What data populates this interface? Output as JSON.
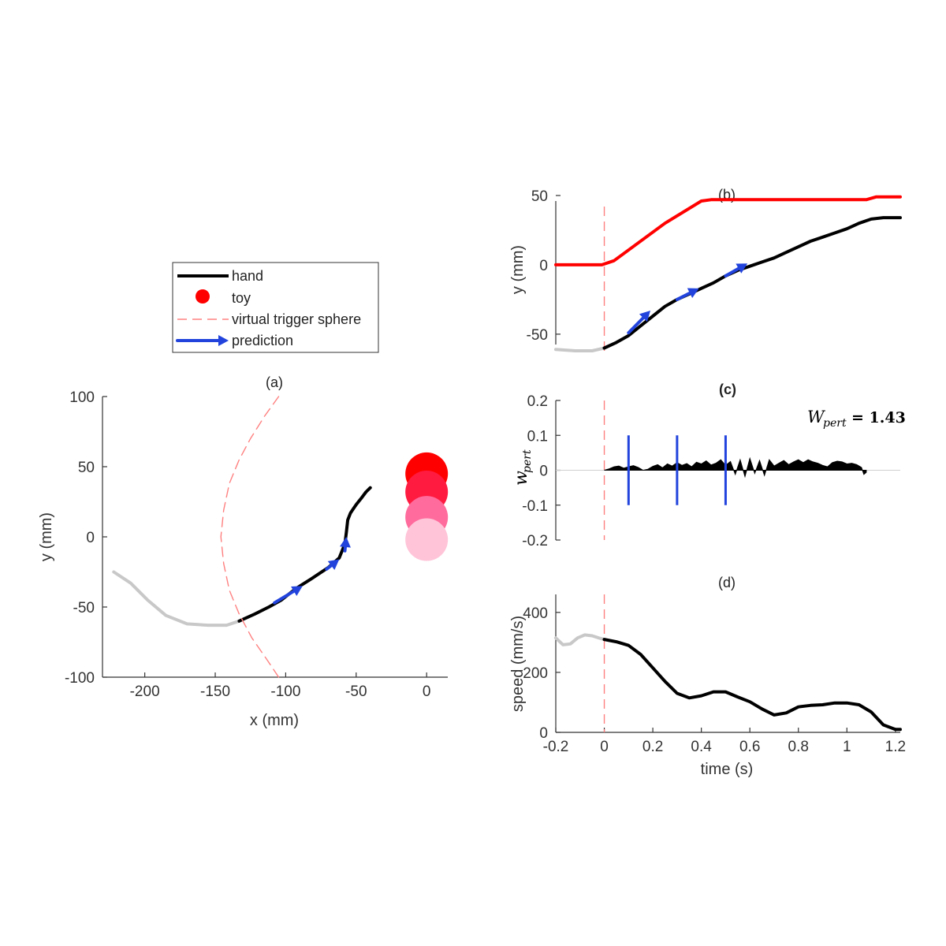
{
  "chart_data": [
    {
      "id": "a",
      "type": "line",
      "title": "(a)",
      "xlabel": "x (mm)",
      "ylabel": "y (mm)",
      "xlim": [
        -230,
        15
      ],
      "ylim": [
        -100,
        100
      ],
      "xticks": [
        -200,
        -150,
        -100,
        -50,
        0
      ],
      "yticks": [
        -100,
        -50,
        0,
        50,
        100
      ],
      "grid": false,
      "legend_placement": "top",
      "legend": [
        {
          "label": "hand",
          "marker": "line",
          "color": "#000000"
        },
        {
          "label": "toy",
          "marker": "dot",
          "color": "#ff0000"
        },
        {
          "label": "virtual trigger sphere",
          "marker": "dashed",
          "color": "#ff8080"
        },
        {
          "label": "prediction",
          "marker": "arrow",
          "color": "#2244dd"
        }
      ],
      "series": [
        {
          "style": "pre-trigger",
          "color": "#c8c8c8",
          "x": [
            -222,
            -210,
            -198,
            -185,
            -170,
            -155,
            -142,
            -133
          ],
          "y": [
            -25,
            -33,
            -45,
            -56,
            -62,
            -63,
            -63,
            -60
          ]
        },
        {
          "name": "hand",
          "color": "#000000",
          "x": [
            -133,
            -122,
            -112,
            -103,
            -93,
            -82,
            -70,
            -62,
            -58,
            -57,
            -56,
            -54,
            -52,
            -50,
            -46,
            -43,
            -40
          ],
          "y": [
            -60,
            -55,
            -50,
            -45,
            -37,
            -30,
            -22,
            -15,
            -5,
            3,
            12,
            17,
            20,
            23,
            28,
            32,
            35
          ]
        },
        {
          "name": "virtual trigger sphere",
          "color": "#ff8080",
          "dashed": true,
          "x": [
            -105,
            -115,
            -125,
            -133,
            -140,
            -144,
            -146,
            -144,
            -140,
            -133,
            -124,
            -113,
            -105
          ],
          "y": [
            100,
            86,
            70,
            55,
            38,
            19,
            0,
            -19,
            -38,
            -55,
            -72,
            -88,
            -100
          ]
        }
      ],
      "arrows": [
        {
          "x0": -108,
          "y0": -47,
          "x1": -88,
          "y1": -35
        },
        {
          "x0": -71,
          "y0": -23,
          "x1": -62,
          "y1": -16
        },
        {
          "x0": -58,
          "y0": -10,
          "x1": -57,
          "y1": 0
        }
      ],
      "toy": [
        {
          "x": 0,
          "y": 45,
          "color": "#ff0000"
        },
        {
          "x": 0,
          "y": 32,
          "color": "#ff1a40"
        },
        {
          "x": 0,
          "y": 14,
          "color": "#ff6b9c"
        },
        {
          "x": 0,
          "y": -2,
          "color": "#ffc4d8"
        }
      ]
    },
    {
      "id": "b",
      "type": "line",
      "title": "(b)",
      "xlabel": "",
      "ylabel": "y (mm)",
      "xlim": [
        -0.2,
        1.22
      ],
      "ylim": [
        -62,
        50
      ],
      "yticks": [
        -50,
        0,
        50
      ],
      "grid": false,
      "trigger_time": 0,
      "series": [
        {
          "style": "toy",
          "color": "#ff0000",
          "x": [
            -0.2,
            -0.01,
            0.04,
            0.25,
            0.4,
            0.44,
            1.08,
            1.12,
            1.22
          ],
          "y": [
            0,
            0,
            3,
            30,
            46,
            47,
            47,
            49,
            49
          ]
        },
        {
          "style": "pre-trigger",
          "color": "#c8c8c8",
          "x": [
            -0.2,
            -0.12,
            -0.05,
            0
          ],
          "y": [
            -61,
            -62,
            -62,
            -60
          ]
        },
        {
          "name": "hand",
          "color": "#000000",
          "x": [
            0,
            0.05,
            0.1,
            0.15,
            0.2,
            0.25,
            0.3,
            0.35,
            0.4,
            0.45,
            0.5,
            0.55,
            0.6,
            0.65,
            0.7,
            0.75,
            0.8,
            0.85,
            0.9,
            0.95,
            1.0,
            1.05,
            1.1,
            1.15,
            1.22
          ],
          "y": [
            -60,
            -56,
            -51,
            -44,
            -37,
            -30,
            -25,
            -21,
            -17,
            -13,
            -8,
            -4,
            -1,
            2,
            5,
            9,
            13,
            17,
            20,
            23,
            26,
            30,
            33,
            34,
            34
          ]
        }
      ],
      "arrows": [
        {
          "x0": 0.1,
          "y0": -49,
          "x1": 0.19,
          "y1": -33
        },
        {
          "x0": 0.3,
          "y0": -25,
          "x1": 0.39,
          "y1": -17
        },
        {
          "x0": 0.5,
          "y0": -8,
          "x1": 0.59,
          "y1": 1
        }
      ]
    },
    {
      "id": "c",
      "type": "area",
      "title": "(c)",
      "xlabel": "",
      "ylabel": "w_pert",
      "ylabel_base": "w",
      "ylabel_sub": "pert",
      "annotation_lhs": "W",
      "annotation_sub": "pert",
      "annotation_rhs": "= 1.43",
      "xlim": [
        -0.2,
        1.22
      ],
      "ylim": [
        -0.2,
        0.2
      ],
      "yticks": [
        -0.2,
        -0.1,
        0,
        0.1,
        0.2
      ],
      "grid": false,
      "trigger_time": 0,
      "prediction_times": [
        0.1,
        0.3,
        0.5
      ],
      "prediction_bar_range": [
        -0.1,
        0.1
      ],
      "series": [
        {
          "name": "w_pert",
          "color": "#000000",
          "x": [
            0,
            0.02,
            0.04,
            0.06,
            0.08,
            0.1,
            0.12,
            0.14,
            0.16,
            0.18,
            0.2,
            0.22,
            0.24,
            0.26,
            0.28,
            0.3,
            0.32,
            0.34,
            0.36,
            0.38,
            0.4,
            0.42,
            0.44,
            0.46,
            0.48,
            0.5,
            0.52,
            0.54,
            0.56,
            0.58,
            0.6,
            0.62,
            0.64,
            0.66,
            0.68,
            0.7,
            0.72,
            0.74,
            0.76,
            0.78,
            0.8,
            0.82,
            0.84,
            0.86,
            0.88,
            0.9,
            0.92,
            0.94,
            0.96,
            0.98,
            1.0,
            1.02,
            1.04,
            1.06,
            1.07,
            1.08
          ],
          "y": [
            0,
            0.004,
            0.01,
            0.012,
            0.006,
            0.01,
            0.013,
            0.008,
            0,
            0.003,
            0.011,
            0.016,
            0.007,
            0.018,
            0.012,
            0.022,
            0.014,
            0.019,
            0.01,
            0.023,
            0.018,
            0.027,
            0.015,
            0.02,
            0.03,
            0.014,
            0.025,
            -0.012,
            0.03,
            -0.018,
            0.034,
            -0.009,
            0.028,
            -0.015,
            0.03,
            0.012,
            0.02,
            0.028,
            0.016,
            0.024,
            0.03,
            0.022,
            0.03,
            0.024,
            0.02,
            0.014,
            0.01,
            0.022,
            0.026,
            0.024,
            0.018,
            0.02,
            0.016,
            0.008,
            -0.012,
            -0.006
          ]
        }
      ]
    },
    {
      "id": "d",
      "type": "line",
      "title": "(d)",
      "xlabel": "time (s)",
      "ylabel": "speed (mm/s)",
      "xlim": [
        -0.2,
        1.22
      ],
      "ylim": [
        0,
        460
      ],
      "xticks": [
        -0.2,
        0,
        0.2,
        0.4,
        0.6,
        0.8,
        1,
        1.2
      ],
      "yticks": [
        0,
        200,
        400
      ],
      "grid": false,
      "trigger_time": 0,
      "series": [
        {
          "style": "pre-trigger",
          "color": "#c8c8c8",
          "x": [
            -0.2,
            -0.17,
            -0.14,
            -0.11,
            -0.08,
            -0.05,
            -0.02,
            0
          ],
          "y": [
            315,
            292,
            295,
            315,
            325,
            322,
            314,
            310
          ]
        },
        {
          "name": "speed",
          "color": "#000000",
          "x": [
            0,
            0.05,
            0.1,
            0.15,
            0.2,
            0.25,
            0.3,
            0.35,
            0.4,
            0.45,
            0.5,
            0.55,
            0.6,
            0.65,
            0.7,
            0.75,
            0.8,
            0.85,
            0.9,
            0.95,
            1.0,
            1.05,
            1.1,
            1.15,
            1.2,
            1.22
          ],
          "y": [
            310,
            302,
            290,
            260,
            215,
            170,
            130,
            115,
            122,
            135,
            135,
            118,
            102,
            78,
            58,
            65,
            85,
            90,
            92,
            98,
            98,
            92,
            68,
            25,
            10,
            10
          ]
        }
      ]
    }
  ]
}
